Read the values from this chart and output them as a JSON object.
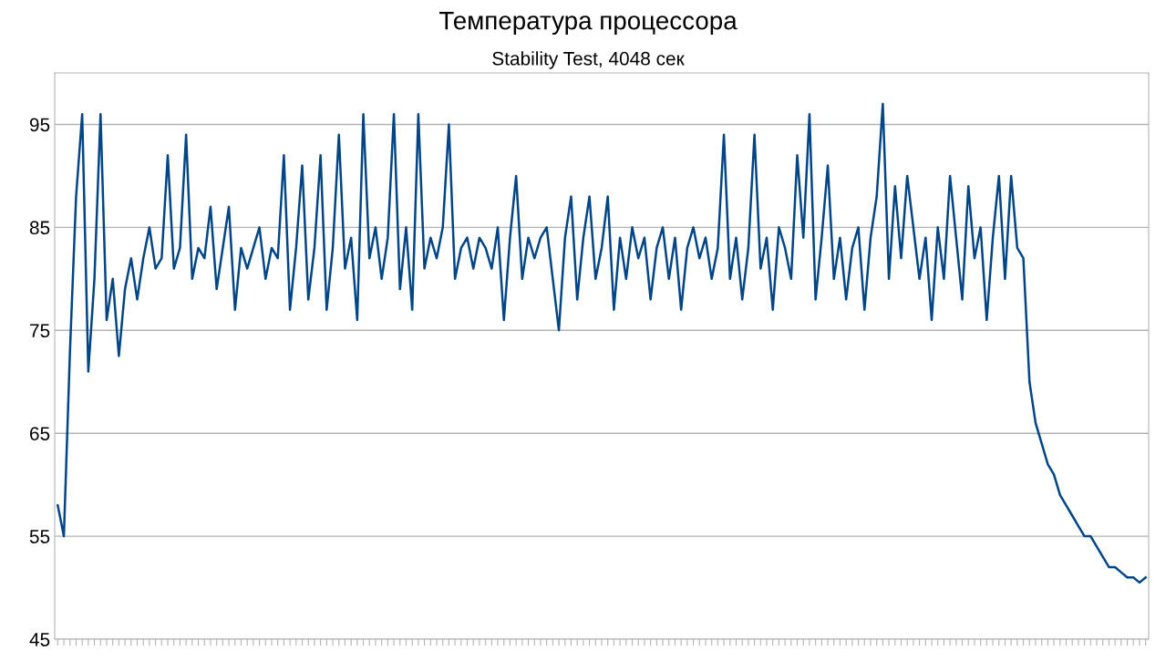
{
  "chart_data": {
    "type": "line",
    "title": "Температура процессора",
    "subtitle": "Stability Test, 4048 сек",
    "categories": [
      null,
      null,
      null,
      null,
      null,
      null,
      null,
      null,
      null,
      null,
      null,
      null,
      null,
      null,
      null,
      null,
      null,
      null,
      null,
      null,
      null,
      null,
      null,
      null,
      null,
      null,
      null,
      null,
      null,
      null,
      null,
      null,
      null,
      null,
      null,
      null,
      null,
      null,
      null,
      null,
      null,
      null,
      null,
      null,
      null,
      null,
      null,
      null,
      null,
      null,
      null,
      null,
      null,
      null,
      null,
      null,
      null,
      null,
      null,
      null,
      null,
      null,
      null,
      null,
      null,
      null,
      null,
      null,
      null,
      null,
      null,
      null,
      null,
      null,
      null,
      null,
      null,
      null,
      null,
      null,
      null,
      null,
      null,
      null,
      null,
      null,
      null,
      null,
      null,
      null,
      null,
      null,
      null,
      null,
      null,
      null,
      null,
      null,
      null,
      null,
      null,
      null,
      null,
      null,
      null,
      null,
      null,
      null,
      null,
      null,
      null,
      null,
      null,
      null,
      null,
      null,
      null,
      null,
      null,
      null,
      null,
      null,
      null,
      null,
      null,
      null,
      null,
      null,
      null,
      null,
      null,
      null,
      null,
      null,
      null,
      null,
      null,
      null,
      null,
      null,
      null,
      null,
      null,
      null,
      null,
      null,
      null,
      null,
      null,
      null,
      null,
      null,
      null,
      null,
      null,
      null,
      null,
      null,
      null,
      null,
      null,
      null,
      null,
      null,
      null,
      null,
      null,
      null,
      null,
      null,
      null,
      null,
      null,
      null,
      null,
      null,
      null,
      null,
      null
    ],
    "series": [
      {
        "color": "#004586",
        "values": [
          58,
          55,
          73,
          88,
          96,
          71,
          80,
          96,
          76,
          80,
          72.5,
          79,
          82,
          78,
          82,
          85,
          81,
          82,
          92,
          81,
          83,
          94,
          80,
          83,
          82,
          87,
          79,
          83,
          87,
          77,
          83,
          81,
          83,
          85,
          80,
          83,
          82,
          92,
          77,
          83,
          91,
          78,
          83,
          92,
          77,
          83,
          94,
          81,
          84,
          76,
          96,
          82,
          85,
          80,
          84,
          96,
          79,
          85,
          77,
          96,
          81,
          84,
          82,
          85,
          95,
          80,
          83,
          84,
          81,
          84,
          83,
          81,
          85,
          76,
          84,
          90,
          80,
          84,
          82,
          84,
          85,
          80,
          75,
          84,
          88,
          78,
          84,
          88,
          80,
          83,
          88,
          77,
          84,
          80,
          85,
          82,
          84,
          78,
          83,
          85,
          80,
          84,
          77,
          83,
          85,
          82,
          84,
          80,
          83,
          94,
          80,
          84,
          78,
          83,
          94,
          81,
          84,
          77,
          85,
          83,
          80,
          92,
          84,
          96,
          78,
          84,
          91,
          80,
          84,
          78,
          83,
          85,
          77,
          84,
          88,
          97,
          80,
          89,
          82,
          90,
          85,
          80,
          84,
          76,
          85,
          80,
          90,
          84,
          78,
          89,
          82,
          85,
          76,
          84,
          90,
          80,
          90,
          83,
          82,
          70,
          66,
          64,
          62,
          61,
          59,
          58,
          57,
          56,
          55,
          55,
          54,
          53,
          52,
          52,
          51.5,
          51,
          51,
          50.5,
          51
        ]
      }
    ],
    "ylim": [
      45,
      100
    ],
    "yticks": [
      45,
      55,
      65,
      75,
      85,
      95
    ],
    "grid": "y",
    "legend": false
  }
}
